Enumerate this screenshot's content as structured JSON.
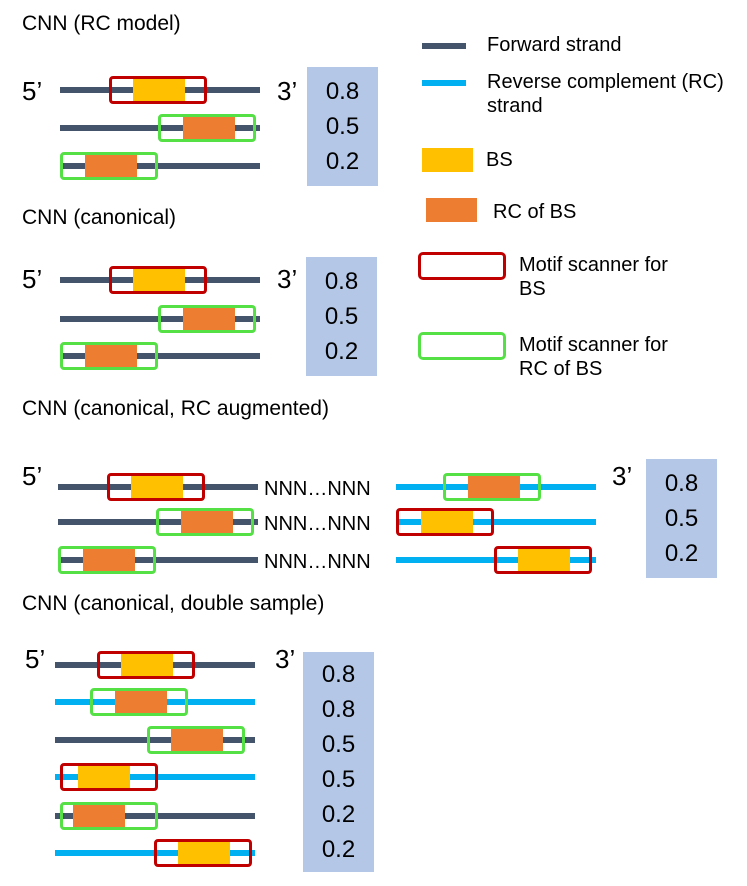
{
  "colors": {
    "forward_strand": "#44546a",
    "rc_strand": "#00b0f0",
    "bs": "#ffc000",
    "rc_of_bs": "#ed7d31",
    "scanner_bs": "#c00000",
    "scanner_rc": "#55e046",
    "score_box": "#b4c7e7"
  },
  "panels": {
    "rc_model": {
      "title": "CNN (RC model)",
      "five": "5’",
      "three": "3’",
      "scores": [
        "0.8",
        "0.5",
        "0.2"
      ]
    },
    "canonical": {
      "title": "CNN (canonical)",
      "five": "5’",
      "three": "3’",
      "scores": [
        "0.8",
        "0.5",
        "0.2"
      ]
    },
    "rc_augmented": {
      "title": "CNN (canonical, RC augmented)",
      "five": "5’",
      "three": "3’",
      "linker": "NNN…NNN",
      "scores": [
        "0.8",
        "0.5",
        "0.2"
      ]
    },
    "double_sample": {
      "title": "CNN (canonical, double sample)",
      "five": "5’",
      "three": "3’",
      "scores": [
        "0.8",
        "0.8",
        "0.5",
        "0.5",
        "0.2",
        "0.2"
      ]
    }
  },
  "legend": {
    "forward": "Forward strand",
    "reverse": "Reverse complement (RC) strand",
    "bs": "BS",
    "rc_bs": "RC of BS",
    "scanner_bs": "Motif scanner for BS",
    "scanner_rc": "Motif scanner for RC of BS"
  }
}
